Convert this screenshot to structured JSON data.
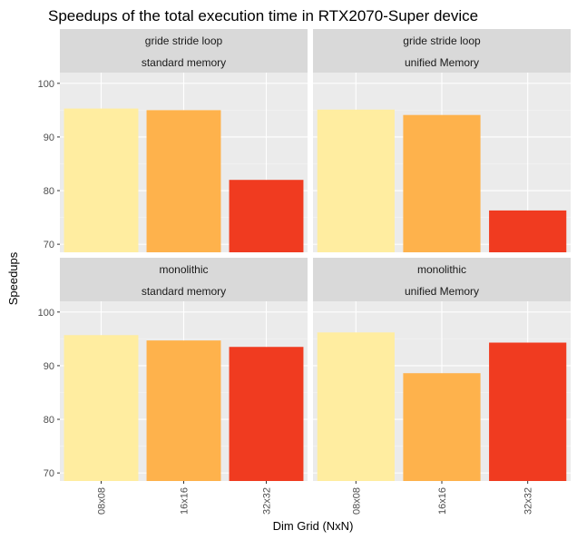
{
  "chart_data": {
    "type": "bar",
    "title": "Speedups of the total execution time in RTX2070-Super device",
    "xlabel": "Dim Grid (NxN)",
    "ylabel": "Speedups",
    "categories": [
      "08x08",
      "16x16",
      "32x32"
    ],
    "ylim": [
      68.5,
      102
    ],
    "yticks": [
      70,
      80,
      90,
      100
    ],
    "grid": true,
    "facet_layout": "2x2",
    "colors": [
      "#FFEDA0",
      "#FEB24C",
      "#F03B20"
    ],
    "panels": [
      {
        "strip_top": "gride stride loop",
        "strip_bottom": "standard memory",
        "values": [
          95.3,
          95.0,
          82.0
        ]
      },
      {
        "strip_top": "gride stride loop",
        "strip_bottom": "unified Memory",
        "values": [
          95.1,
          94.1,
          76.3
        ]
      },
      {
        "strip_top": "monolithic",
        "strip_bottom": "standard memory",
        "values": [
          95.7,
          94.7,
          93.5
        ]
      },
      {
        "strip_top": "monolithic",
        "strip_bottom": "unified Memory",
        "values": [
          96.2,
          88.6,
          94.3
        ]
      }
    ]
  }
}
